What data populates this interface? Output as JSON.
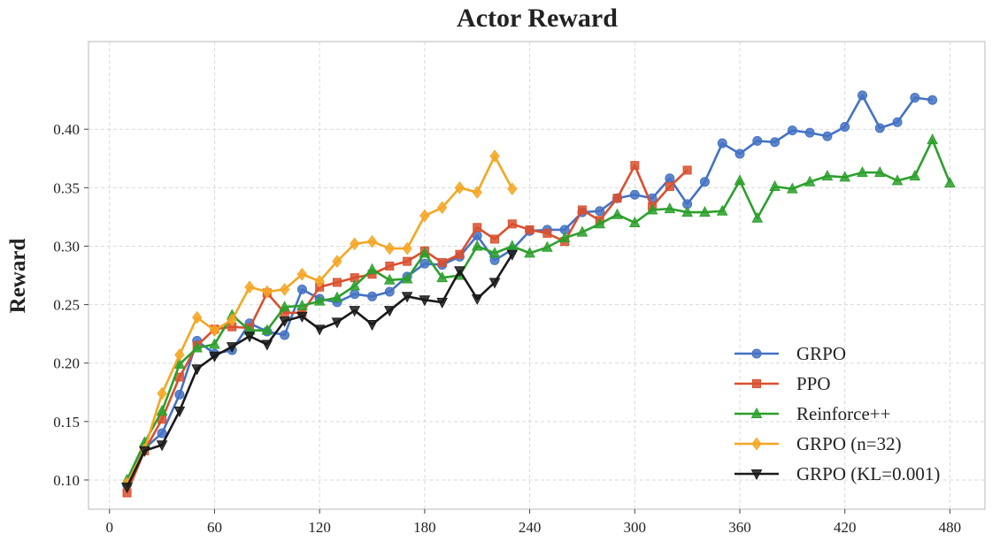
{
  "chart_data": {
    "type": "line",
    "title": "Actor Reward",
    "xlabel": "",
    "ylabel": "Reward",
    "xlim": [
      -12,
      500
    ],
    "ylim": [
      0.075,
      0.475
    ],
    "xticks": [
      0,
      60,
      120,
      180,
      240,
      300,
      360,
      420,
      480
    ],
    "yticks": [
      0.1,
      0.15,
      0.2,
      0.25,
      0.3,
      0.35,
      0.4
    ],
    "xtick_labels": [
      "0",
      "60",
      "120",
      "180",
      "240",
      "300",
      "360",
      "420",
      "480"
    ],
    "ytick_labels": [
      "0.10",
      "0.15",
      "0.20",
      "0.25",
      "0.30",
      "0.35",
      "0.40"
    ],
    "grid": true,
    "legend_position": "bottom-right",
    "series": [
      {
        "name": "GRPO",
        "color": "#4472C4",
        "marker": "circle",
        "x": [
          10,
          20,
          30,
          40,
          50,
          60,
          70,
          80,
          90,
          100,
          110,
          120,
          130,
          140,
          150,
          160,
          170,
          180,
          190,
          200,
          210,
          220,
          230,
          240,
          250,
          260,
          270,
          280,
          290,
          300,
          310,
          320,
          330,
          340,
          350,
          360,
          370,
          380,
          390,
          400,
          410,
          420,
          430,
          440,
          450,
          460,
          470
        ],
        "y": [
          0.096,
          0.127,
          0.14,
          0.173,
          0.219,
          0.208,
          0.211,
          0.234,
          0.227,
          0.224,
          0.263,
          0.255,
          0.252,
          0.259,
          0.257,
          0.261,
          0.274,
          0.285,
          0.284,
          0.291,
          0.309,
          0.288,
          0.297,
          0.313,
          0.314,
          0.314,
          0.329,
          0.33,
          0.341,
          0.344,
          0.341,
          0.358,
          0.336,
          0.355,
          0.388,
          0.379,
          0.39,
          0.389,
          0.399,
          0.397,
          0.394,
          0.402,
          0.429,
          0.401,
          0.406,
          0.427,
          0.425
        ]
      },
      {
        "name": "PPO",
        "color": "#D9502F",
        "marker": "square",
        "x": [
          10,
          20,
          30,
          40,
          50,
          60,
          70,
          80,
          90,
          100,
          110,
          120,
          130,
          140,
          150,
          160,
          170,
          180,
          190,
          200,
          210,
          220,
          230,
          240,
          250,
          260,
          270,
          280,
          290,
          300,
          310,
          320,
          330
        ],
        "y": [
          0.089,
          0.125,
          0.152,
          0.188,
          0.215,
          0.229,
          0.231,
          0.23,
          0.26,
          0.243,
          0.243,
          0.265,
          0.269,
          0.273,
          0.276,
          0.283,
          0.287,
          0.296,
          0.286,
          0.293,
          0.316,
          0.306,
          0.319,
          0.314,
          0.311,
          0.304,
          0.331,
          0.322,
          0.341,
          0.369,
          0.334,
          0.351,
          0.365
        ]
      },
      {
        "name": "Reinforce++",
        "color": "#2CA02C",
        "marker": "triangle-up",
        "x": [
          10,
          20,
          30,
          40,
          50,
          60,
          70,
          80,
          90,
          100,
          110,
          120,
          130,
          140,
          150,
          160,
          170,
          180,
          190,
          200,
          210,
          220,
          230,
          240,
          250,
          260,
          270,
          280,
          290,
          300,
          310,
          320,
          330,
          340,
          350,
          360,
          370,
          380,
          390,
          400,
          410,
          420,
          430,
          440,
          450,
          460,
          470,
          480
        ],
        "y": [
          0.1,
          0.132,
          0.159,
          0.199,
          0.213,
          0.216,
          0.241,
          0.228,
          0.228,
          0.248,
          0.249,
          0.253,
          0.256,
          0.266,
          0.28,
          0.271,
          0.272,
          0.294,
          0.273,
          0.275,
          0.3,
          0.294,
          0.3,
          0.294,
          0.299,
          0.307,
          0.312,
          0.319,
          0.327,
          0.32,
          0.331,
          0.332,
          0.329,
          0.329,
          0.33,
          0.356,
          0.324,
          0.351,
          0.349,
          0.355,
          0.36,
          0.359,
          0.363,
          0.363,
          0.356,
          0.36,
          0.391,
          0.354
        ]
      },
      {
        "name": "GRPO (n=32)",
        "color": "#F5A623",
        "marker": "diamond",
        "x": [
          10,
          20,
          30,
          40,
          50,
          60,
          70,
          80,
          90,
          100,
          110,
          120,
          130,
          140,
          150,
          160,
          170,
          180,
          190,
          200,
          210,
          220,
          230
        ],
        "y": [
          0.097,
          0.126,
          0.174,
          0.207,
          0.239,
          0.228,
          0.237,
          0.265,
          0.261,
          0.263,
          0.276,
          0.27,
          0.287,
          0.302,
          0.304,
          0.298,
          0.298,
          0.326,
          0.333,
          0.35,
          0.346,
          0.377,
          0.349
        ]
      },
      {
        "name": "GRPO (KL=0.001)",
        "color": "#1A1A1A",
        "marker": "triangle-down",
        "x": [
          10,
          20,
          30,
          40,
          50,
          60,
          70,
          80,
          90,
          100,
          110,
          120,
          130,
          140,
          150,
          160,
          170,
          180,
          190,
          200,
          210,
          220,
          230
        ],
        "y": [
          0.094,
          0.125,
          0.13,
          0.159,
          0.195,
          0.206,
          0.214,
          0.223,
          0.216,
          0.236,
          0.24,
          0.229,
          0.235,
          0.245,
          0.233,
          0.245,
          0.257,
          0.254,
          0.252,
          0.279,
          0.255,
          0.269,
          0.293
        ]
      }
    ]
  }
}
